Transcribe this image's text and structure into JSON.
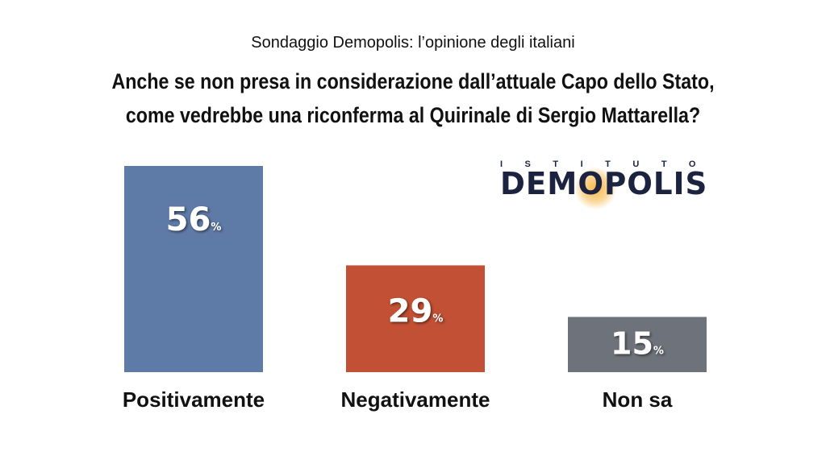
{
  "header": {
    "subtitle": "Sondaggio Demopolis: l’opinione degli italiani",
    "question_line1": "Anche se non presa in considerazione dall’attuale Capo dello Stato,",
    "question_line2": "come vedrebbe una riconferma al Quirinale di Sergio Mattarella?"
  },
  "logo": {
    "top_text": "ISTITUTO",
    "main_text": "DEMOPOLIS"
  },
  "chart_data": {
    "type": "bar",
    "categories": [
      "Positivamente",
      "Negativamente",
      "Non sa"
    ],
    "values": [
      56,
      29,
      15
    ],
    "value_suffix": "%",
    "colors": [
      "#5e7aa6",
      "#c25034",
      "#6e727a"
    ],
    "ylim": [
      0,
      56
    ],
    "grid": false,
    "legend": "none"
  }
}
